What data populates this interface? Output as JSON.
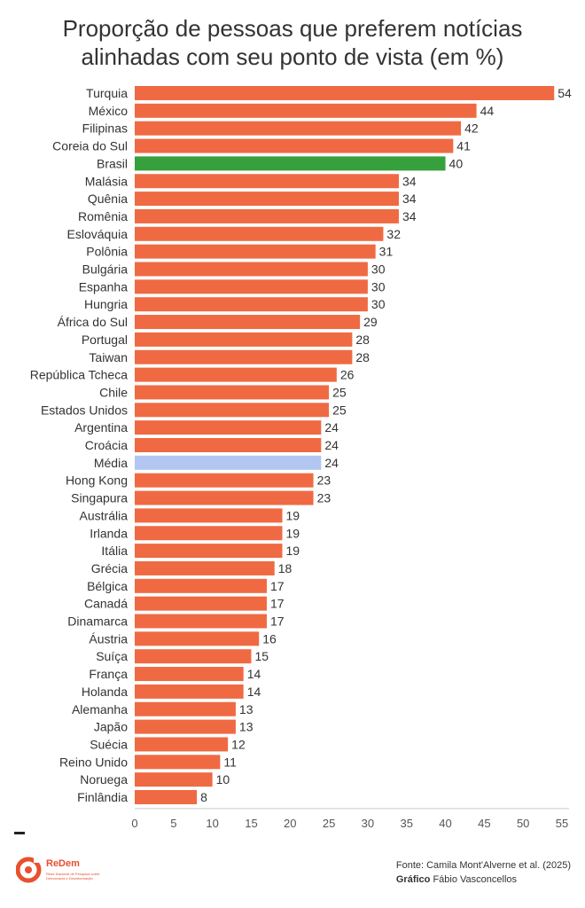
{
  "title_lines": [
    "Proporção de pessoas que preferem notícias",
    "alinhadas com seu ponto de vista (em %)"
  ],
  "chart_data": {
    "type": "bar",
    "orientation": "horizontal",
    "categories": [
      "Turquia",
      "México",
      "Filipinas",
      "Coreia do Sul",
      "Brasil",
      "Malásia",
      "Quênia",
      "Romênia",
      "Eslováquia",
      "Polônia",
      "Bulgária",
      "Espanha",
      "Hungria",
      "África do Sul",
      "Portugal",
      "Taiwan",
      "República Tcheca",
      "Chile",
      "Estados Unidos",
      "Argentina",
      "Croácia",
      "Média",
      "Hong Kong",
      "Singapura",
      "Austrália",
      "Irlanda",
      "Itália",
      "Grécia",
      "Bélgica",
      "Canadá",
      "Dinamarca",
      "Áustria",
      "Suíça",
      "França",
      "Holanda",
      "Alemanha",
      "Japão",
      "Suécia",
      "Reino Unido",
      "Noruega",
      "Finlândia"
    ],
    "values": [
      54,
      44,
      42,
      41,
      40,
      34,
      34,
      34,
      32,
      31,
      30,
      30,
      30,
      29,
      28,
      28,
      26,
      25,
      25,
      24,
      24,
      24,
      23,
      23,
      19,
      19,
      19,
      18,
      17,
      17,
      17,
      16,
      15,
      14,
      14,
      13,
      13,
      12,
      11,
      10,
      8
    ],
    "x_ticks": [
      "0",
      "5",
      "10",
      "15",
      "20",
      "25",
      "30",
      "35",
      "40",
      "45",
      "50",
      "55"
    ],
    "xlim": [
      0,
      55
    ],
    "colors": {
      "default": "#ef6a43",
      "highlight": "#36a03c",
      "average": "#b3c6f2"
    },
    "highlight_category": "Brasil",
    "average_category": "Média",
    "grid": false
  },
  "footer": {
    "source_text": "Fonte: Camila Mont'Alverne et al. (2025)",
    "credit_label": "Gráfico",
    "credit_name": "Fábio Vasconcellos",
    "logo_name": "ReDem",
    "logo_sub": "Rede Nacional de Pesquisa sobre Democracia e Desinformação"
  }
}
